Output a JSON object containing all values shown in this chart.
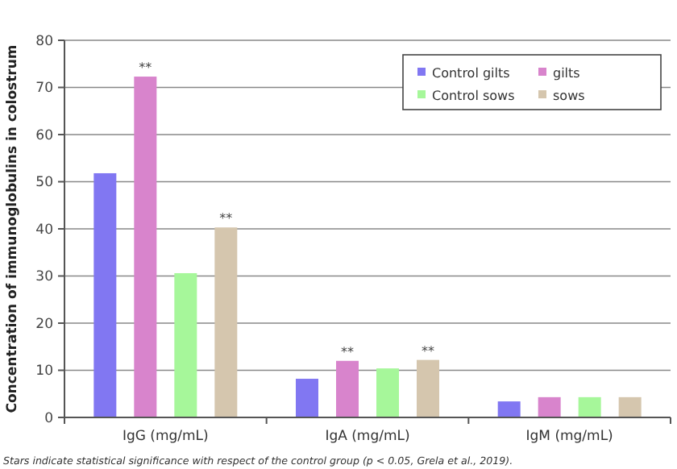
{
  "chart_data": {
    "type": "bar",
    "ylabel": "Concentration of immunoglobulins in colostrum",
    "categories": [
      "IgG (mg/mL)",
      "IgA (mg/mL)",
      "IgM (mg/mL)"
    ],
    "series": [
      {
        "name": "Control gilts",
        "color": "#8177f2",
        "values": [
          51.8,
          8.2,
          3.4
        ]
      },
      {
        "name": "gilts",
        "color": "#d884cc",
        "values": [
          72.3,
          12,
          4.3
        ],
        "value_labels": [
          "**",
          "**",
          null
        ]
      },
      {
        "name": "Control sows",
        "color": "#a6f79a",
        "values": [
          30.6,
          10.4,
          4.3
        ]
      },
      {
        "name": "sows",
        "color": "#d5c6ae",
        "values": [
          40.3,
          12.2,
          4.3
        ],
        "value_labels": [
          "**",
          "**",
          null
        ]
      }
    ],
    "ylim": [
      0,
      80
    ],
    "yticks": [
      0,
      10,
      20,
      30,
      40,
      50,
      60,
      70,
      80
    ],
    "grid": "y",
    "legend": "top right",
    "annotations": [
      "Stars indicate statistical significance with respect of the control group (p < 0.05, Grela et al., 2019)."
    ]
  }
}
